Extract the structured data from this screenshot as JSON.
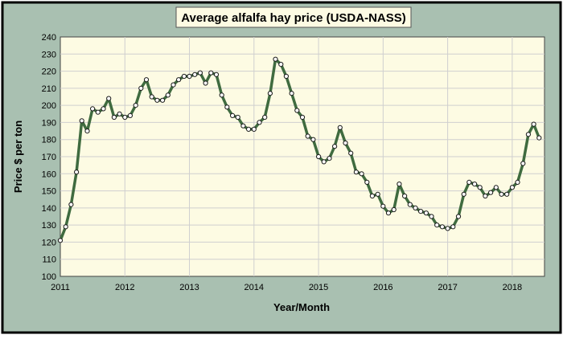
{
  "chart_data": {
    "type": "line",
    "title": "Average alfalfa hay price (USDA-NASS)",
    "xlabel": "Year/Month",
    "ylabel": "Price $ per ton",
    "ylim": [
      100,
      240
    ],
    "yticks": [
      100,
      110,
      120,
      130,
      140,
      150,
      160,
      170,
      180,
      190,
      200,
      210,
      220,
      230,
      240
    ],
    "xlim": [
      2011.0,
      2018.5
    ],
    "xticks": [
      "2011",
      "2012",
      "2013",
      "2014",
      "2015",
      "2016",
      "2017",
      "2018"
    ],
    "grid": true,
    "legend": "none",
    "colors": {
      "line": "#3f6b3f",
      "marker_fill": "#ffffff",
      "marker_stroke": "#1a1a1a",
      "plot_bg": "#fdfbe3",
      "frame_bg": "#a9c0b1",
      "grid": "#cfcfcf"
    },
    "series": [
      {
        "x": [
          2011.0,
          2011.083,
          2011.167,
          2011.25,
          2011.333,
          2011.417,
          2011.5,
          2011.583,
          2011.667,
          2011.75,
          2011.833,
          2011.917,
          2012.0,
          2012.083,
          2012.167,
          2012.25,
          2012.333,
          2012.417,
          2012.5,
          2012.583,
          2012.667,
          2012.75,
          2012.833,
          2012.917,
          2013.0,
          2013.083,
          2013.167,
          2013.25,
          2013.333,
          2013.417,
          2013.5,
          2013.583,
          2013.667,
          2013.75,
          2013.833,
          2013.917,
          2014.0,
          2014.083,
          2014.167,
          2014.25,
          2014.333,
          2014.417,
          2014.5,
          2014.583,
          2014.667,
          2014.75,
          2014.833,
          2014.917,
          2015.0,
          2015.083,
          2015.167,
          2015.25,
          2015.333,
          2015.417,
          2015.5,
          2015.583,
          2015.667,
          2015.75,
          2015.833,
          2015.917,
          2016.0,
          2016.083,
          2016.167,
          2016.25,
          2016.333,
          2016.417,
          2016.5,
          2016.583,
          2016.667,
          2016.75,
          2016.833,
          2016.917,
          2017.0,
          2017.083,
          2017.167,
          2017.25,
          2017.333,
          2017.417,
          2017.5,
          2017.583,
          2017.667,
          2017.75,
          2017.833,
          2017.917,
          2018.0,
          2018.083,
          2018.167,
          2018.25,
          2018.333,
          2018.417
        ],
        "values": [
          121,
          129,
          142,
          161,
          191,
          185,
          198,
          196,
          198,
          204,
          193,
          195,
          193,
          194,
          200,
          210,
          215,
          205,
          203,
          203,
          206,
          212,
          215,
          217,
          217,
          218,
          219,
          213,
          219,
          218,
          206,
          199,
          194,
          193,
          188,
          186,
          186,
          190,
          193,
          207,
          227,
          224,
          217,
          207,
          197,
          193,
          182,
          180,
          170,
          167,
          169,
          176,
          187,
          178,
          172,
          161,
          160,
          155,
          147,
          148,
          141,
          137,
          139,
          154,
          147,
          142,
          140,
          138,
          137,
          135,
          130,
          129,
          128,
          129,
          135,
          148,
          155,
          154,
          152,
          147,
          149,
          152,
          148,
          148,
          152,
          155,
          166,
          183,
          189,
          181
        ]
      }
    ]
  }
}
